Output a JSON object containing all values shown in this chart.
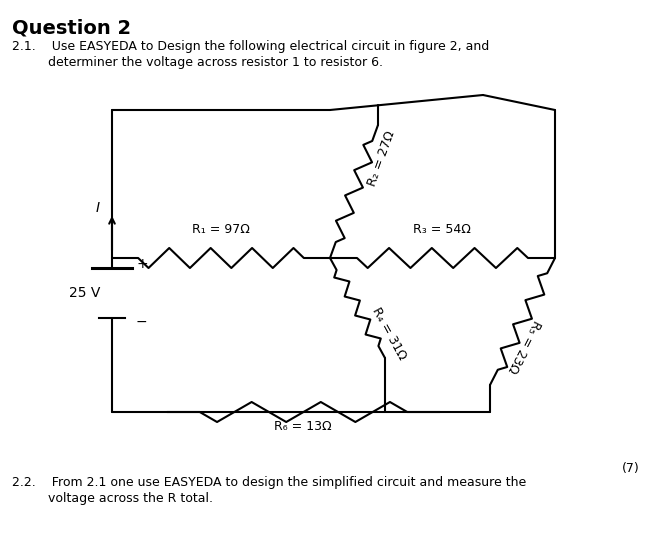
{
  "title": "Question 2",
  "line21a": "2.1.    Use EASYEDA to Design the following electrical circuit in figure 2, and",
  "line21b": "         determiner the voltage across resistor 1 to resistor 6.",
  "line22a": "2.2.    From 2.1 one use EASYEDA to design the simplified circuit and measure the",
  "line22b": "         voltage across the R total.",
  "mark": "(7)",
  "R1": "97Ω",
  "R2": "27Ω",
  "R3": "54Ω",
  "R4": "31Ω",
  "R5": "23Ω",
  "R6": "13Ω",
  "voltage": "25 V",
  "current_label": "I",
  "bg_color": "#ffffff",
  "line_color": "#000000"
}
